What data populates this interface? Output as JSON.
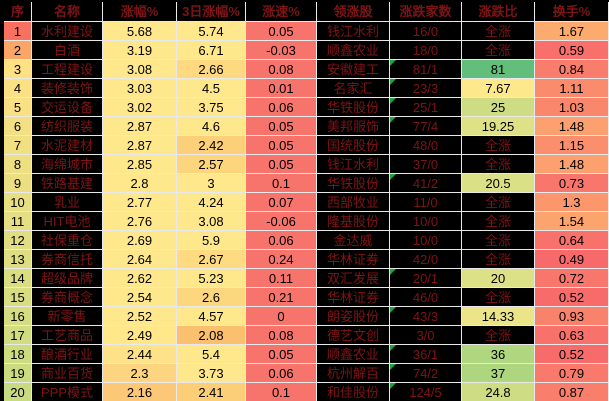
{
  "table": {
    "headers": [
      {
        "key": "seq",
        "label": "序"
      },
      {
        "key": "name",
        "label": "名称"
      },
      {
        "key": "change",
        "label": "涨幅%"
      },
      {
        "key": "change3d",
        "label": "3日涨幅%"
      },
      {
        "key": "speed",
        "label": "涨速%"
      },
      {
        "key": "leader",
        "label": "领涨股"
      },
      {
        "key": "updown",
        "label": "涨跌家数"
      },
      {
        "key": "ratio",
        "label": "涨跌比"
      },
      {
        "key": "turnover",
        "label": "换手%"
      }
    ],
    "all_up_label": "全涨",
    "rows": [
      {
        "seq": "1",
        "name": "水利建设",
        "change": "5.68",
        "change3d": "5.74",
        "speed": "0.05",
        "leader": "钱江水利",
        "updown": "16/0",
        "ratio": "全涨",
        "turnover": "1.67",
        "marker": false
      },
      {
        "seq": "2",
        "name": "白酒",
        "change": "3.19",
        "change3d": "6.71",
        "speed": "-0.03",
        "leader": "顺鑫农业",
        "updown": "18/0",
        "ratio": "全涨",
        "turnover": "0.59",
        "marker": false
      },
      {
        "seq": "3",
        "name": "工程建设",
        "change": "3.08",
        "change3d": "2.66",
        "speed": "0.08",
        "leader": "安徽建工",
        "updown": "81/1",
        "ratio": "81",
        "turnover": "0.84",
        "marker": true
      },
      {
        "seq": "4",
        "name": "装修装饰",
        "change": "3.03",
        "change3d": "4.5",
        "speed": "0.01",
        "leader": "名家汇",
        "updown": "23/3",
        "ratio": "7.67",
        "turnover": "1.11",
        "marker": true
      },
      {
        "seq": "5",
        "name": "交运设备",
        "change": "3.02",
        "change3d": "3.75",
        "speed": "0.06",
        "leader": "华铁股份",
        "updown": "25/1",
        "ratio": "25",
        "turnover": "1.03",
        "marker": true
      },
      {
        "seq": "6",
        "name": "纺织服装",
        "change": "2.87",
        "change3d": "4.6",
        "speed": "0.05",
        "leader": "美邦服饰",
        "updown": "77/4",
        "ratio": "19.25",
        "turnover": "1.48",
        "marker": true
      },
      {
        "seq": "7",
        "name": "水泥建材",
        "change": "2.87",
        "change3d": "2.42",
        "speed": "0.05",
        "leader": "国统股份",
        "updown": "48/0",
        "ratio": "全涨",
        "turnover": "1.15",
        "marker": false
      },
      {
        "seq": "8",
        "name": "海绵城市",
        "change": "2.85",
        "change3d": "2.57",
        "speed": "0.05",
        "leader": "钱江水利",
        "updown": "37/0",
        "ratio": "全涨",
        "turnover": "1.48",
        "marker": false
      },
      {
        "seq": "9",
        "name": "铁路基建",
        "change": "2.8",
        "change3d": "3",
        "speed": "0.1",
        "leader": "华铁股份",
        "updown": "41/2",
        "ratio": "20.5",
        "turnover": "0.73",
        "marker": true
      },
      {
        "seq": "10",
        "name": "乳业",
        "change": "2.77",
        "change3d": "4.24",
        "speed": "0.07",
        "leader": "西部牧业",
        "updown": "11/0",
        "ratio": "全涨",
        "turnover": "1.3",
        "marker": false
      },
      {
        "seq": "11",
        "name": "HIT电池",
        "change": "2.76",
        "change3d": "3.08",
        "speed": "-0.06",
        "leader": "隆基股份",
        "updown": "10/0",
        "ratio": "全涨",
        "turnover": "1.54",
        "marker": false
      },
      {
        "seq": "12",
        "name": "社保重仓",
        "change": "2.69",
        "change3d": "5.9",
        "speed": "0.06",
        "leader": "金达威",
        "updown": "10/0",
        "ratio": "全涨",
        "turnover": "0.64",
        "marker": false
      },
      {
        "seq": "13",
        "name": "券商信托",
        "change": "2.64",
        "change3d": "2.67",
        "speed": "0.24",
        "leader": "华林证券",
        "updown": "42/0",
        "ratio": "全涨",
        "turnover": "0.49",
        "marker": false
      },
      {
        "seq": "14",
        "name": "超级品牌",
        "change": "2.62",
        "change3d": "5.23",
        "speed": "0.11",
        "leader": "双汇发展",
        "updown": "20/1",
        "ratio": "20",
        "turnover": "0.72",
        "marker": true
      },
      {
        "seq": "15",
        "name": "券商概念",
        "change": "2.54",
        "change3d": "2.6",
        "speed": "0.21",
        "leader": "华林证券",
        "updown": "46/0",
        "ratio": "全涨",
        "turnover": "0.52",
        "marker": false
      },
      {
        "seq": "16",
        "name": "新零售",
        "change": "2.52",
        "change3d": "4.57",
        "speed": "0",
        "leader": "朗姿股份",
        "updown": "43/3",
        "ratio": "14.33",
        "turnover": "0.93",
        "marker": true
      },
      {
        "seq": "17",
        "name": "工艺商品",
        "change": "2.49",
        "change3d": "2.08",
        "speed": "0.08",
        "leader": "德艺文创",
        "updown": "3/0",
        "ratio": "全涨",
        "turnover": "0.63",
        "marker": false
      },
      {
        "seq": "18",
        "name": "酿酒行业",
        "change": "2.44",
        "change3d": "5.4",
        "speed": "0.05",
        "leader": "顺鑫农业",
        "updown": "36/1",
        "ratio": "36",
        "turnover": "0.52",
        "marker": true
      },
      {
        "seq": "19",
        "name": "商业百货",
        "change": "2.3",
        "change3d": "3.73",
        "speed": "0.06",
        "leader": "杭州解百",
        "updown": "74/2",
        "ratio": "37",
        "turnover": "0.79",
        "marker": true
      },
      {
        "seq": "20",
        "name": "PPP模式",
        "change": "2.16",
        "change3d": "2.41",
        "speed": "0.1",
        "leader": "和佳股份",
        "updown": "124/5",
        "ratio": "24.8",
        "turnover": "0.87",
        "marker": true
      }
    ]
  },
  "colors": {
    "background": "#000000",
    "grid_line": "#e9e9e9",
    "header_text": "#7e1416",
    "dark_cell_text": "#7e1416",
    "number_text": "#000000",
    "speed_bg": "#f7746c",
    "marker_green": "#1ea33c",
    "scales": {
      "seq": [
        [
          1,
          "#F8705F"
        ],
        [
          2,
          "#FBA667"
        ],
        [
          3,
          "#FEE183"
        ],
        [
          20,
          "#C8DB80"
        ]
      ],
      "change": [
        [
          2.16,
          "#FCC878"
        ],
        [
          2.5,
          "#FFE88B"
        ],
        [
          6,
          "#FFE88B"
        ]
      ],
      "change3d": [
        [
          2.08,
          "#FBC06E"
        ],
        [
          3,
          "#FFE88B"
        ],
        [
          7,
          "#FFE88B"
        ]
      ],
      "ratio": [
        [
          7,
          "#FFE88B"
        ],
        [
          40,
          "#A5D47E"
        ],
        [
          81,
          "#63BE7B"
        ]
      ],
      "turnover": [
        [
          0.49,
          "#F8696B"
        ],
        [
          1.67,
          "#FCAB6E"
        ]
      ]
    }
  }
}
